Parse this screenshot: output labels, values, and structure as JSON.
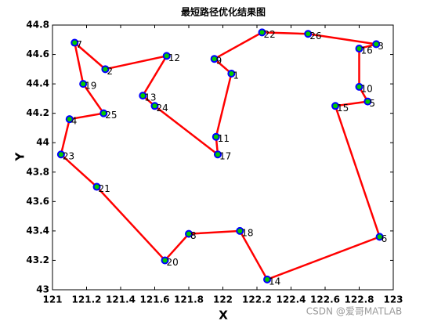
{
  "chart_data": {
    "type": "route",
    "title": "最短路径优化结果图",
    "x_label": "X",
    "y_label": "Y",
    "watermark": "CSDN @爱哥MATLAB",
    "closed": true,
    "line_color": "#ff0000",
    "marker_edge_color": "#0000ff",
    "marker_face_color": "#00cc00",
    "point_labels": [
      "22",
      "26",
      "3",
      "16",
      "10",
      "5",
      "15",
      "6",
      "14",
      "18",
      "8",
      "20",
      "21",
      "23",
      "4",
      "25",
      "19",
      "7",
      "2",
      "12",
      "13",
      "24",
      "17",
      "11",
      "1",
      "9"
    ],
    "x": [
      122.23,
      122.5,
      122.9,
      122.8,
      122.8,
      122.85,
      122.66,
      122.92,
      122.26,
      122.1,
      121.8,
      121.66,
      121.26,
      121.05,
      121.1,
      121.3,
      121.18,
      121.13,
      121.31,
      121.67,
      121.53,
      121.6,
      121.97,
      121.96,
      122.05,
      121.95
    ],
    "y": [
      44.75,
      44.74,
      44.67,
      44.64,
      44.38,
      44.28,
      44.25,
      43.36,
      43.07,
      43.4,
      43.38,
      43.2,
      43.7,
      43.92,
      44.16,
      44.2,
      44.4,
      44.68,
      44.5,
      44.59,
      44.32,
      44.25,
      43.92,
      44.04,
      44.47,
      44.57
    ],
    "xlim": [
      121,
      123
    ],
    "ylim": [
      43,
      44.8
    ],
    "xticks": [
      121,
      121.2,
      121.4,
      121.6,
      121.8,
      122,
      122.2,
      122.4,
      122.6,
      122.8,
      123
    ],
    "yticks": [
      43,
      43.2,
      43.4,
      43.6,
      43.8,
      44,
      44.2,
      44.4,
      44.6,
      44.8
    ]
  }
}
